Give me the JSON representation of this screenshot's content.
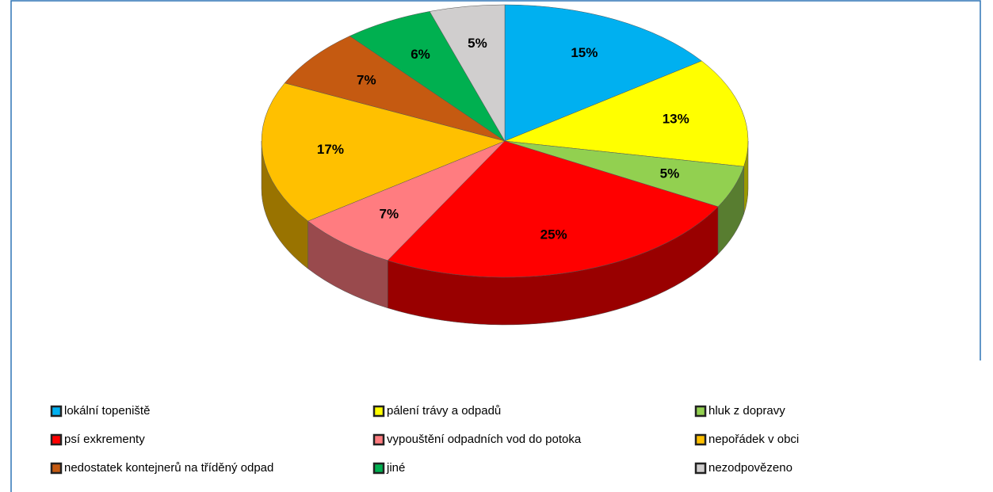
{
  "chart_data": {
    "type": "pie",
    "categories": [
      "lokální topeniště",
      "pálení trávy a odpadů",
      "hluk z dopravy",
      "psí exkrementy",
      "vypouštění odpadních vod do potoka",
      "nepořádek v obci",
      "nedostatek kontejnerů na tříděný odpad",
      "jiné",
      "nezodpovězeno"
    ],
    "values": [
      15,
      13,
      5,
      25,
      7,
      17,
      7,
      6,
      5
    ],
    "value_labels": [
      "15%",
      "13%",
      "5%",
      "25%",
      "7%",
      "17%",
      "7%",
      "6%",
      "5%"
    ],
    "colors": [
      "#00b0f0",
      "#ffff00",
      "#92d050",
      "#ff0000",
      "#ff7c80",
      "#ffc000",
      "#c55a11",
      "#00b050",
      "#d0cece"
    ],
    "legend": "bottom"
  }
}
